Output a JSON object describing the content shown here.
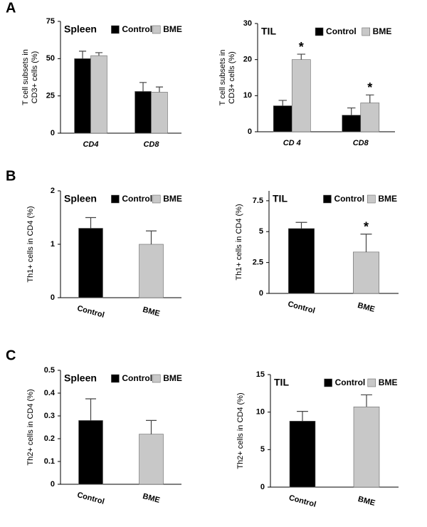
{
  "panel_labels": [
    "A",
    "B",
    "C"
  ],
  "chart_data": [
    {
      "type": "bar",
      "title": "Spleen",
      "ylabel": [
        "T cell subsets in",
        "CD3+ cells (%)"
      ],
      "categories": [
        "CD4",
        "CD8"
      ],
      "series": [
        {
          "name": "Control",
          "color": "#000000",
          "values": [
            50,
            28
          ],
          "errors": [
            5,
            6
          ]
        },
        {
          "name": "BME",
          "color": "#c8c8c8",
          "values": [
            52,
            27.5
          ],
          "errors": [
            2,
            3.5
          ]
        }
      ],
      "ylim": [
        0,
        75
      ],
      "yticks": [
        0,
        25,
        50,
        75
      ],
      "legend": "top"
    },
    {
      "type": "bar",
      "title": "TIL",
      "ylabel": [
        "T cell subsets in",
        "CD3+ cells (%)"
      ],
      "categories": [
        "CD 4",
        "CD8"
      ],
      "series": [
        {
          "name": "Control",
          "color": "#000000",
          "values": [
            7.2,
            4.6
          ],
          "errors": [
            1.5,
            2
          ]
        },
        {
          "name": "BME",
          "color": "#c8c8c8",
          "values": [
            20,
            8
          ],
          "errors": [
            1.5,
            2.2
          ],
          "annotations": [
            "*",
            "*"
          ]
        }
      ],
      "ylim": [
        0,
        30
      ],
      "yticks": [
        0,
        10,
        20,
        30
      ],
      "legend": "top"
    },
    {
      "type": "bar",
      "title": "Spleen",
      "ylabel": [
        "Th1+ cells  in CD4 (%)"
      ],
      "categories": [
        "Control",
        "BME"
      ],
      "series": [
        {
          "name": "Control",
          "color": "#000000",
          "values": [
            1.3,
            null
          ],
          "errors": [
            0.2,
            null
          ]
        },
        {
          "name": "BME",
          "color": "#c8c8c8",
          "values": [
            null,
            1.0
          ],
          "errors": [
            null,
            0.25
          ]
        }
      ],
      "ylim": [
        0,
        2
      ],
      "yticks": [
        0,
        1,
        2
      ],
      "legend": "top"
    },
    {
      "type": "bar",
      "title": "TIL",
      "ylabel": [
        "Th1+ cells  in CD4 (%)"
      ],
      "categories": [
        "Control",
        "BME"
      ],
      "series": [
        {
          "name": "Control",
          "color": "#000000",
          "values": [
            5.25,
            null
          ],
          "errors": [
            0.5,
            null
          ]
        },
        {
          "name": "BME",
          "color": "#c8c8c8",
          "values": [
            null,
            3.35
          ],
          "errors": [
            null,
            1.45
          ],
          "annotations": [
            null,
            "*"
          ]
        }
      ],
      "ylim": [
        0,
        8.3
      ],
      "yticks": [
        0,
        2.5,
        5,
        7.5
      ],
      "legend": "top"
    },
    {
      "type": "bar",
      "title": "Spleen",
      "ylabel": [
        "Th2+ cells  in CD4 (%)"
      ],
      "categories": [
        "Control",
        "BME"
      ],
      "series": [
        {
          "name": "Control",
          "color": "#000000",
          "values": [
            0.28,
            null
          ],
          "errors": [
            0.095,
            null
          ]
        },
        {
          "name": "BME",
          "color": "#c8c8c8",
          "values": [
            null,
            0.22
          ],
          "errors": [
            null,
            0.06
          ]
        }
      ],
      "ylim": [
        0,
        0.5
      ],
      "yticks": [
        0,
        0.1,
        0.2,
        0.3,
        0.4,
        0.5
      ],
      "legend": "top"
    },
    {
      "type": "bar",
      "title": "TIL",
      "ylabel": [
        "Th2+ cells  in CD4 (%)"
      ],
      "categories": [
        "Control",
        "BME"
      ],
      "series": [
        {
          "name": "Control",
          "color": "#000000",
          "values": [
            8.8,
            null
          ],
          "errors": [
            1.3,
            null
          ]
        },
        {
          "name": "BME",
          "color": "#c8c8c8",
          "values": [
            null,
            10.7
          ],
          "errors": [
            null,
            1.6
          ]
        }
      ],
      "ylim": [
        0,
        15
      ],
      "yticks": [
        0,
        5,
        10,
        15
      ],
      "legend": "top"
    }
  ]
}
